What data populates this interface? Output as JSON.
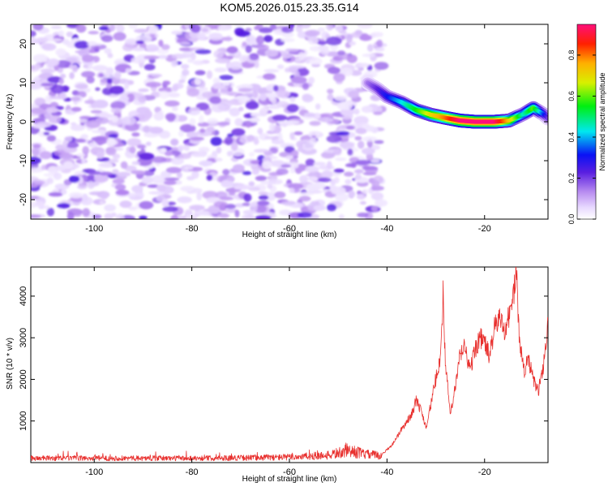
{
  "title": "KOM5.2026.015.23.35.G14",
  "chart_data": [
    {
      "type": "heatmap",
      "xlabel": "Height of straight line (km)",
      "ylabel": "Frequency (Hz)",
      "xlim": [
        -113,
        -7
      ],
      "ylim": [
        -25,
        25
      ],
      "xticks": [
        -100,
        -80,
        -60,
        -40,
        -20
      ],
      "yticks": [
        -20,
        -10,
        0,
        10,
        20
      ],
      "colorbar": {
        "label": "Normalized spectral amplitude",
        "range": [
          0,
          0.95
        ],
        "ticks": [
          0.0,
          0.2,
          0.4,
          0.6,
          0.8
        ]
      },
      "noise_region_x": [
        -113,
        -41
      ],
      "ridge": {
        "x": [
          -44,
          -42,
          -40,
          -37,
          -34,
          -31,
          -28,
          -25,
          -22,
          -18,
          -15,
          -12,
          -10,
          -8,
          -7
        ],
        "y": [
          10,
          8.5,
          6.5,
          5,
          3,
          1.8,
          1,
          0.3,
          0,
          0,
          0.3,
          2,
          3.5,
          2,
          0.8
        ],
        "amp": [
          0.15,
          0.22,
          0.3,
          0.42,
          0.55,
          0.7,
          0.8,
          0.95,
          0.95,
          0.95,
          0.75,
          0.45,
          0.6,
          0.35,
          0.2
        ]
      }
    },
    {
      "type": "line",
      "xlabel": "Height of straight line (km)",
      "ylabel": "SNR (10 * v/v)",
      "xlim": [
        -113,
        -7
      ],
      "ylim": [
        0,
        4700
      ],
      "xticks": [
        -100,
        -80,
        -60,
        -40,
        -20
      ],
      "yticks": [
        1000,
        2000,
        3000,
        4000
      ],
      "color": "#e8302e",
      "series": [
        {
          "x": [
            -113,
            -100,
            -90,
            -80,
            -70,
            -60,
            -52,
            -48,
            -44,
            -41,
            -39,
            -37,
            -35,
            -34,
            -33,
            -32,
            -31,
            -30,
            -29,
            -28.5,
            -28,
            -27,
            -26,
            -25,
            -24,
            -23,
            -22,
            -21,
            -20,
            -19,
            -18,
            -17,
            -16,
            -15,
            -14,
            -13.5,
            -13,
            -12,
            -11,
            -10,
            -9,
            -8,
            -7
          ],
          "y": [
            120,
            120,
            120,
            120,
            130,
            150,
            200,
            330,
            220,
            200,
            420,
            800,
            1150,
            1500,
            1250,
            850,
            1400,
            2000,
            2600,
            4050,
            2300,
            1150,
            1800,
            2600,
            2800,
            2200,
            2700,
            3000,
            2900,
            2550,
            3200,
            3500,
            3200,
            3500,
            4100,
            4650,
            3200,
            2200,
            2450,
            2000,
            1700,
            2300,
            3300
          ]
        }
      ]
    }
  ]
}
